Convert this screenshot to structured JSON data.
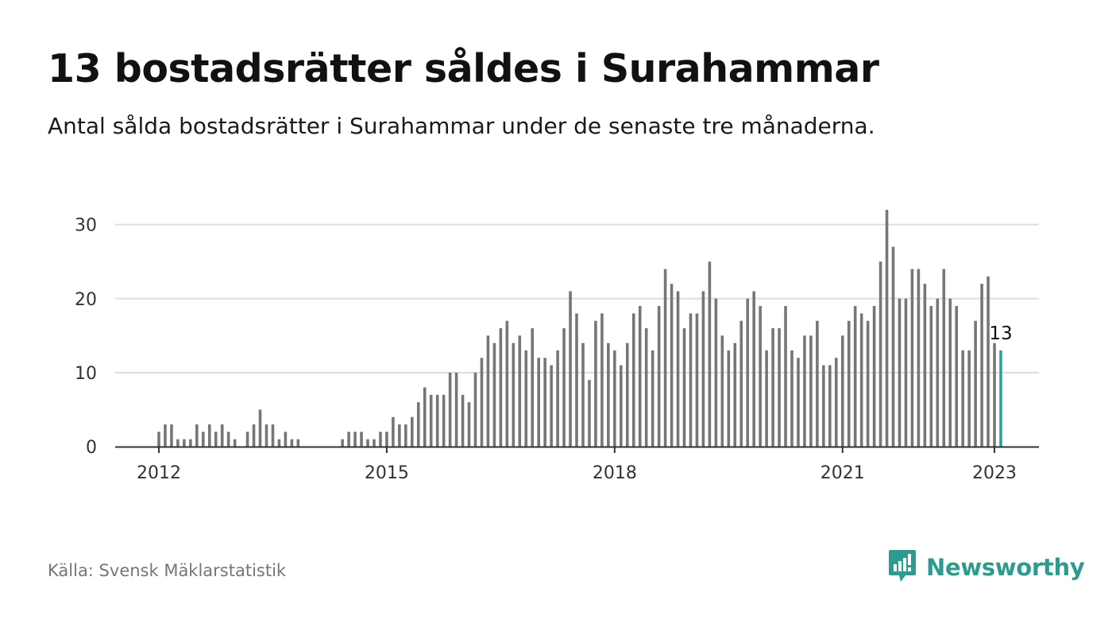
{
  "header": {
    "title": "13 bostadsrätter såldes i Surahammar",
    "subtitle": "Antal sålda bostadsrätter i Surahammar under de senaste tre månaderna."
  },
  "footer": {
    "source": "Källa: Svensk Mäklarstatistik",
    "brand": "Newsworthy"
  },
  "colors": {
    "bar": "#767676",
    "highlight": "#2aa198",
    "gridline": "#dddddd",
    "axis": "#333333",
    "brand": "#2c9c8e"
  },
  "icons": {
    "brand_logo": "bar-chart-speech-bubble-icon"
  },
  "chart_data": {
    "type": "bar",
    "title": "13 bostadsrätter såldes i Surahammar",
    "subtitle": "Antal sålda bostadsrätter i Surahammar under de senaste tre månaderna.",
    "xlabel": "",
    "ylabel": "",
    "start": "2012-01",
    "frequency": "monthly",
    "ylim": [
      0,
      32
    ],
    "yticks": [
      0,
      10,
      20,
      30
    ],
    "xtick_labels": [
      "2012",
      "2015",
      "2018",
      "2021",
      "2023"
    ],
    "grid": true,
    "legend": "none",
    "highlight_label": "13",
    "values": [
      2,
      3,
      3,
      1,
      1,
      1,
      3,
      2,
      3,
      2,
      3,
      2,
      1,
      0,
      2,
      3,
      5,
      3,
      3,
      1,
      2,
      1,
      1,
      0,
      0,
      0,
      0,
      0,
      0,
      1,
      2,
      2,
      2,
      1,
      1,
      2,
      2,
      4,
      3,
      3,
      4,
      6,
      8,
      7,
      7,
      7,
      10,
      10,
      7,
      6,
      10,
      12,
      15,
      14,
      16,
      17,
      14,
      15,
      13,
      16,
      12,
      12,
      11,
      13,
      16,
      21,
      18,
      14,
      9,
      17,
      18,
      14,
      13,
      11,
      14,
      18,
      19,
      16,
      13,
      19,
      24,
      22,
      21,
      16,
      18,
      18,
      21,
      25,
      20,
      15,
      13,
      14,
      17,
      20,
      21,
      19,
      13,
      16,
      16,
      19,
      13,
      12,
      15,
      15,
      17,
      11,
      11,
      12,
      15,
      17,
      19,
      18,
      17,
      19,
      25,
      32,
      27,
      20,
      20,
      24,
      24,
      22,
      19,
      20,
      24,
      20,
      19,
      13,
      13,
      17,
      22,
      23,
      14,
      13
    ]
  }
}
